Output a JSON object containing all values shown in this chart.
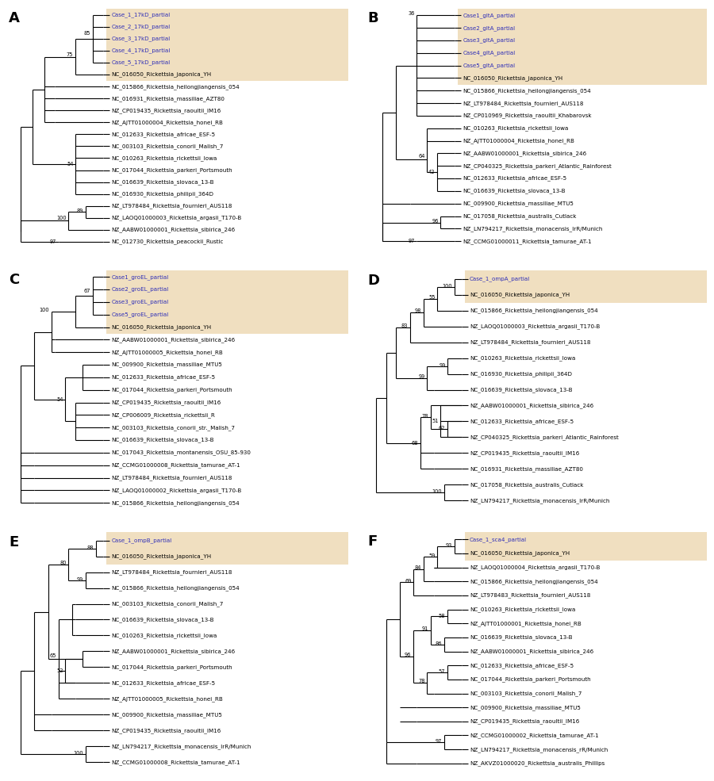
{
  "highlight_color": "#f0dfc0",
  "case_color": "#2e2eb8",
  "taxa_color": "#000000",
  "panels": {
    "A": {
      "label": "A",
      "taxa": [
        "Case_1_17kD_partial",
        "Case_2_17kD_partial",
        "Case_3_17kD_partial",
        "Case_4_17kD_partial",
        "Case_5_17kD_partial",
        "NC_016050_Rickettsia_japonica_YH",
        "NC_015866_Rickettsia_heilongjiangensis_054",
        "NC_016931_Rickettsia_massiliae_AZT80",
        "NZ_CP019435_Rickettsia_raoultii_IM16",
        "NZ_AJTT01000004_Rickettsia_honei_RB",
        "NC_012633_Rickettsia_africae_ESF-5",
        "NC_003103_Rickettsia_conorii_Malish_7",
        "NC_010263_Rickettsia_rickettsii_Iowa",
        "NC_017044_Rickettsia_parkeri_Portsmouth",
        "NC_016639_Rickettsia_slovaca_13-B",
        "NC_016930_Rickettsia_philipii_364D",
        "NZ_LT978484_Rickettsia_fournieri_AUS118",
        "NZ_LAOQ01000003_Rickettsia_argasii_T170-B",
        "NZ_AABW01000001_Rickettsia_sibirica_246",
        "NC_012730_Rickettsia_peacockii_Rustic"
      ],
      "case_count": 5,
      "highlight_rows": [
        0,
        5
      ]
    },
    "B": {
      "label": "B",
      "taxa": [
        "Case1_gltA_partial",
        "Case2_gltA_partial",
        "Case3_gltA_partial",
        "Case4_gltA_partial",
        "Case5_gltA_partial",
        "NC_016050_Rickettsia_japonica_YH",
        "NC_015866_Rickettsia_heilongjiangensis_054",
        "NZ_LT978484_Rickettsia_fournieri_AUS118",
        "NZ_CP010969_Rickettsia_raoultii_Khabarovsk",
        "NC_010263_Rickettsia_rickettsii_Iowa",
        "NZ_AJTT01000004_Rickettsia_honei_RB",
        "NZ_AABW01000001_Rickettsia_sibirica_246",
        "NZ_CP040325_Rickettsia_parkeri_Atlantic_Rainforest",
        "NC_012633_Rickettsia_africae_ESF-5",
        "NC_016639_Rickettsia_slovaca_13-B",
        "NC_009900_Rickettsia_massiliae_MTU5",
        "NC_017058_Rickettsia_australis_Cutlack",
        "NZ_LN794217_Rickettsia_monacensis_IrR/Munich",
        "NZ_CCMG01000011_Rickettsia_tamurae_AT-1"
      ],
      "case_count": 5,
      "highlight_rows": [
        0,
        5
      ]
    },
    "C": {
      "label": "C",
      "taxa": [
        "Case1_groEL_partial",
        "Case2_groEL_partial",
        "Case3_groEL_partial",
        "Case5_groEL_partial",
        "NC_016050_Rickettsia_japonica_YH",
        "NZ_AABW01000001_Rickettsia_sibirica_246",
        "NZ_AJTT01000005_Rickettsia_honei_RB",
        "NC_009900_Rickettsia_massiliae_MTU5",
        "NC_012633_Rickettsia_africae_ESF-5",
        "NC_017044_Rickettsia_parkeri_Portsmouth",
        "NZ_CP019435_Rickettsia_raoultii_IM16",
        "NZ_CP006009_Rickettsia_rickettsii_R",
        "NC_003103_Rickettsia_conorii_str._Malish_7",
        "NC_016639_Rickettsia_slovaca_13-B",
        "NC_017043_Rickettsia_montanensis_OSU_85-930",
        "NZ_CCMG01000008_Rickettsia_tamurae_AT-1",
        "NZ_LT978484_Rickettsia_fournieri_AUS118",
        "NZ_LAOQ01000002_Rickettsia_argasii_T170-B",
        "NC_015866_Rickettsia_heilongjiangensis_054"
      ],
      "case_count": 4,
      "highlight_rows": [
        0,
        4
      ]
    },
    "D": {
      "label": "D",
      "taxa": [
        "Case_1_ompA_partial",
        "NC_016050_Rickettsia_japonica_YH",
        "NC_015866_Rickettsia_heilongjiangensis_054",
        "NZ_LAOQ01000003_Rickettsia_argasii_T170-B",
        "NZ_LT978484_Rickettsia_fournieri_AUS118",
        "NC_010263_Rickettsia_rickettsii_Iowa",
        "NC_016930_Rickettsia_philipii_364D",
        "NC_016639_Rickettsia_slovaca_13-B",
        "NZ_AABW01000001_Rickettsia_sibirica_246",
        "NC_012633_Rickettsia_africae_ESF-5",
        "NZ_CP040325_Rickettsia_parkeri_Atlantic_Rainforest",
        "NZ_CP019435_Rickettsia_raoultii_IM16",
        "NC_016931_Rickettsia_massiliae_AZT80",
        "NC_017058_Rickettsia_australis_Cutlack",
        "NZ_LN794217_Rickettsia_monacensis_IrR/Munich"
      ],
      "case_count": 1,
      "highlight_rows": [
        0,
        1
      ]
    },
    "E": {
      "label": "E",
      "taxa": [
        "Case_1_ompB_partial",
        "NC_016050_Rickettsia_japonica_YH",
        "NZ_LT978484_Rickettsia_fournieri_AUS118",
        "NC_015866_Rickettsia_heilongjiangensis_054",
        "NC_003103_Rickettsia_conorii_Malish_7",
        "NC_016639_Rickettsia_slovaca_13-B",
        "NC_010263_Rickettsia_rickettsii_Iowa",
        "NZ_AABW01000001_Rickettsia_sibirica_246",
        "NC_017044_Rickettsia_parkeri_Portsmouth",
        "NC_012633_Rickettsia_africae_ESF-5",
        "NZ_AJTT01000005_Rickettsia_honei_RB",
        "NC_009900_Rickettsia_massiliae_MTU5",
        "NZ_CP019435_Rickettsia_raoultii_IM16",
        "NZ_LN794217_Rickettsia_monacensis_IrR/Munich",
        "NZ_CCMG01000008_Rickettsia_tamurae_AT-1"
      ],
      "case_count": 1,
      "highlight_rows": [
        0,
        1
      ]
    },
    "F": {
      "label": "F",
      "taxa": [
        "Case_1_sca4_partial",
        "NC_016050_Rickettsia_japonica_YH",
        "NZ_LAOQ01000004_Rickettsia_argasii_T170-B",
        "NC_015866_Rickettsia_heilongjiangensis_054",
        "NZ_LT978483_Rickettsia_fournieri_AUS118",
        "NC_010263_Rickettsia_rickettsii_Iowa",
        "NZ_AJTT01000001_Rickettsia_honei_RB",
        "NC_016639_Rickettsia_slovaca_13-B",
        "NZ_AABW01000001_Rickettsia_sibirica_246",
        "NC_012633_Rickettsia_africae_ESF-5",
        "NC_017044_Rickettsia_parkeri_Portsmouth",
        "NC_003103_Rickettsia_conorii_Malish_7",
        "NC_009900_Rickettsia_massiliae_MTU5",
        "NZ_CP019435_Rickettsia_raoultii_IM16",
        "NZ_CCMG01000002_Rickettsia_tamurae_AT-1",
        "NZ_LN794217_Rickettsia_monacensis_rR/Munich",
        "NZ_AKVZ01000020_Rickettsia_australis_Phillips"
      ],
      "case_count": 1,
      "highlight_rows": [
        0,
        1
      ]
    }
  }
}
